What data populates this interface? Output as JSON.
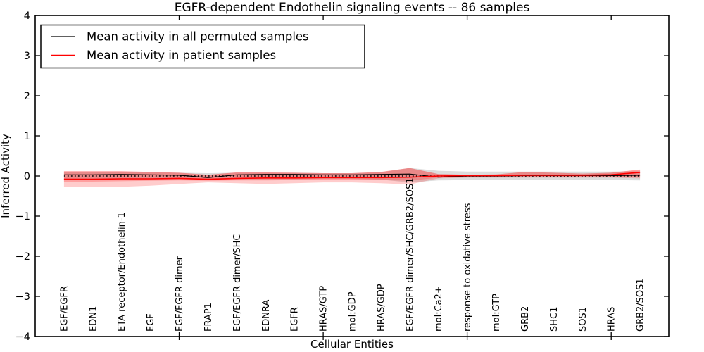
{
  "chart_data": {
    "type": "line",
    "title": "EGFR-dependent Endothelin signaling events -- 86 samples",
    "xlabel": "Cellular Entities",
    "ylabel": "Inferred Activity",
    "ylim": [
      -4,
      4
    ],
    "yticks": [
      -4,
      -3,
      -2,
      -1,
      0,
      1,
      2,
      3,
      4
    ],
    "xtick_mark_indices": [
      4,
      9,
      14,
      19
    ],
    "grid": false,
    "legend_position": "upper left",
    "categories": [
      "EGF/EGFR",
      "EDN1",
      "ETA receptor/Endothelin-1",
      "EGF",
      "EGF/EGFR dimer",
      "FRAP1",
      "EGF/EGFR dimer/SHC",
      "EDNRA",
      "EGFR",
      "HRAS/GTP",
      "mol:GDP",
      "HRAS/GDP",
      "EGF/EGFR dimer/SHC/GRB2/SOS1",
      "mol:Ca2+",
      "response to oxidative stress",
      "mol:GTP",
      "GRB2",
      "SHC1",
      "SOS1",
      "HRAS",
      "GRB2/SOS1"
    ],
    "legend": [
      {
        "label": "Mean activity in all permuted samples",
        "color": "#000000"
      },
      {
        "label": "Mean activity in patient samples",
        "color": "#ff0000"
      }
    ],
    "series": [
      {
        "name": "Mean activity in all permuted samples",
        "color": "#000000",
        "width": 1.2,
        "values": [
          0.03,
          0.03,
          0.04,
          0.03,
          0.02,
          -0.04,
          0.03,
          0.04,
          0.04,
          0.03,
          0.03,
          0.04,
          0.05,
          -0.03,
          0.0,
          0.0,
          0.01,
          0.01,
          0.01,
          0.01,
          0.02
        ]
      },
      {
        "name": "Mean activity in patient samples",
        "color": "#ff0000",
        "width": 1.6,
        "values": [
          -0.08,
          -0.08,
          -0.07,
          -0.07,
          -0.06,
          -0.08,
          -0.06,
          -0.05,
          -0.05,
          -0.04,
          -0.04,
          -0.04,
          -0.03,
          0.0,
          0.01,
          0.01,
          0.02,
          0.02,
          0.02,
          0.03,
          0.09
        ]
      }
    ],
    "bands": [
      {
        "name": "permuted-sample-range",
        "color": "rgba(130,130,130,0.28)",
        "upper": [
          0.1,
          0.1,
          0.1,
          0.09,
          0.08,
          0.07,
          0.08,
          0.08,
          0.08,
          0.07,
          0.07,
          0.09,
          0.2,
          0.13,
          0.11,
          0.11,
          0.11,
          0.11,
          0.11,
          0.11,
          0.12
        ],
        "lower": [
          -0.1,
          -0.1,
          -0.1,
          -0.09,
          -0.08,
          -0.09,
          -0.08,
          -0.08,
          -0.08,
          -0.07,
          -0.07,
          -0.09,
          -0.16,
          -0.11,
          -0.1,
          -0.1,
          -0.1,
          -0.1,
          -0.1,
          -0.1,
          -0.11
        ]
      },
      {
        "name": "patient-sample-range-outer",
        "color": "rgba(255,0,0,0.20)",
        "upper": [
          0.12,
          0.12,
          0.12,
          0.1,
          0.08,
          0.03,
          0.09,
          0.09,
          0.08,
          0.07,
          0.07,
          0.1,
          0.2,
          0.05,
          0.03,
          0.04,
          0.1,
          0.08,
          0.06,
          0.08,
          0.16
        ],
        "lower": [
          -0.28,
          -0.28,
          -0.27,
          -0.24,
          -0.2,
          -0.16,
          -0.18,
          -0.2,
          -0.18,
          -0.16,
          -0.16,
          -0.18,
          -0.21,
          -0.06,
          -0.04,
          -0.04,
          -0.04,
          -0.04,
          -0.04,
          -0.04,
          -0.06
        ]
      },
      {
        "name": "patient-sample-range-inner",
        "color": "rgba(255,0,0,0.22)",
        "upper": [
          0.12,
          0.12,
          0.12,
          0.1,
          0.08,
          0.03,
          0.09,
          0.09,
          0.08,
          0.07,
          0.07,
          0.1,
          0.2,
          0.05,
          0.03,
          0.04,
          0.1,
          0.08,
          0.06,
          0.08,
          0.16
        ],
        "lower": [
          -0.14,
          -0.14,
          -0.13,
          -0.12,
          -0.11,
          -0.12,
          -0.11,
          -0.11,
          -0.1,
          -0.09,
          -0.09,
          -0.1,
          -0.12,
          -0.04,
          -0.02,
          -0.02,
          -0.02,
          -0.02,
          -0.02,
          -0.02,
          -0.03
        ]
      }
    ],
    "zero_line": {
      "y": 0,
      "style": "dotted",
      "color": "#000000"
    },
    "colors": {
      "axis": "#000000",
      "background": "#ffffff",
      "permuted_line": "#000000",
      "patient_line": "#ff0000"
    }
  }
}
